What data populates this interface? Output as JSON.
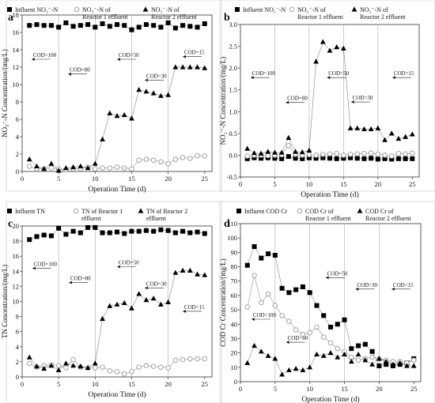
{
  "chart_data": [
    {
      "id": "a",
      "panel_label": "a",
      "type": "line",
      "xlabel": "Operation Time (d)",
      "ylabel": "NO₃⁻-N Concentration/(mg/L)",
      "xlim": [
        0,
        26
      ],
      "ylim": [
        0,
        18
      ],
      "xticks": [
        0,
        5,
        10,
        15,
        20,
        25
      ],
      "yticks": [
        0,
        2,
        4,
        6,
        8,
        10,
        12,
        14,
        16,
        18
      ],
      "phase_lines": [
        5,
        10,
        15,
        20
      ],
      "legend": [
        {
          "marker": "square",
          "lines": [
            "Influent NO₃⁻-N"
          ]
        },
        {
          "marker": "circle",
          "lines": [
            "NO₃⁻-N of",
            "Reactor 1 effluent"
          ]
        },
        {
          "marker": "triangle",
          "lines": [
            "NO₃⁻-N of",
            "Reactor 2 effluent"
          ]
        }
      ],
      "annotations": [
        {
          "text": "COD=100",
          "x": 1.5,
          "y": 13.0
        },
        {
          "text": "COD=80",
          "x": 6.5,
          "y": 11.3
        },
        {
          "text": "COD=50",
          "x": 13.2,
          "y": 13.0
        },
        {
          "text": "COD=30",
          "x": 17.0,
          "y": 10.6
        },
        {
          "text": "COD=15",
          "x": 22.2,
          "y": 13.3
        }
      ],
      "series": [
        {
          "marker": "square",
          "color": "#000000",
          "x": [
            1,
            2,
            3,
            4,
            5,
            6,
            7,
            8,
            9,
            10,
            11,
            12,
            13,
            14,
            15,
            16,
            17,
            18,
            19,
            20,
            21,
            22,
            23,
            24,
            25
          ],
          "y": [
            16.8,
            16.9,
            16.8,
            16.8,
            16.6,
            17.1,
            16.7,
            16.8,
            16.9,
            16.6,
            17.0,
            16.7,
            16.9,
            16.8,
            16.3,
            16.6,
            16.9,
            16.8,
            16.6,
            17.1,
            16.5,
            16.8,
            16.7,
            16.6,
            17.0
          ]
        },
        {
          "marker": "circle",
          "color": "#999999",
          "x": [
            1,
            2,
            3,
            4,
            5,
            6,
            7,
            8,
            9,
            10,
            11,
            12,
            13,
            14,
            15,
            16,
            17,
            18,
            19,
            20,
            21,
            22,
            23,
            24,
            25
          ],
          "y": [
            0.6,
            0.3,
            0.3,
            0.4,
            0.3,
            0.2,
            0.3,
            0.3,
            0.5,
            0.3,
            0.4,
            0.4,
            0.5,
            0.4,
            0.3,
            1.3,
            1.4,
            1.3,
            1.1,
            0.9,
            1.4,
            1.6,
            1.5,
            1.8,
            1.8
          ]
        },
        {
          "marker": "triangle",
          "color": "#000000",
          "x": [
            1,
            2,
            3,
            4,
            5,
            6,
            7,
            8,
            9,
            10,
            11,
            12,
            13,
            14,
            15,
            16,
            17,
            18,
            19,
            20,
            21,
            22,
            23,
            24,
            25
          ],
          "y": [
            1.4,
            0.6,
            0.3,
            0.9,
            0.1,
            0.4,
            0.5,
            0.6,
            0.4,
            0.9,
            3.7,
            6.7,
            6.4,
            6.5,
            6.1,
            9.4,
            9.2,
            9.0,
            8.7,
            8.8,
            12.0,
            12.0,
            12.0,
            12.0,
            11.9
          ]
        }
      ]
    },
    {
      "id": "b",
      "panel_label": "b",
      "type": "line",
      "xlabel": "Operation Time (d)",
      "ylabel": "NO₂⁻-N Concentration/(mg/L)",
      "xlim": [
        0,
        26
      ],
      "ylim": [
        -0.5,
        3.0
      ],
      "xticks": [
        0,
        5,
        10,
        15,
        20,
        25
      ],
      "yticks": [
        -0.5,
        0.0,
        0.5,
        1.0,
        1.5,
        2.0,
        2.5,
        3.0
      ],
      "ytick_labels": [
        "-0.5",
        "0.0",
        "0.5",
        "1.0",
        "1.5",
        "2.0",
        "2.5",
        "3.0"
      ],
      "phase_lines": [
        5,
        10,
        15,
        20
      ],
      "legend": [
        {
          "marker": "square",
          "lines": [
            "Influent NO₂⁻-N"
          ]
        },
        {
          "marker": "circle",
          "lines": [
            "NO₂⁻-N of",
            "Reactor 1 effluent"
          ]
        },
        {
          "marker": "triangle",
          "lines": [
            "NO₂⁻-N of",
            "Reactor 2 effluent"
          ]
        }
      ],
      "annotations": [
        {
          "text": "COD=100",
          "x": 1.7,
          "y": 1.8
        },
        {
          "text": "COD=80",
          "x": 6.8,
          "y": 1.23
        },
        {
          "text": "COD=50",
          "x": 12.8,
          "y": 1.8
        },
        {
          "text": "COD=30",
          "x": 16.3,
          "y": 1.24
        },
        {
          "text": "COD=15",
          "x": 22.3,
          "y": 1.8
        }
      ],
      "series": [
        {
          "marker": "square",
          "color": "#000000",
          "x": [
            1,
            2,
            3,
            4,
            5,
            6,
            7,
            8,
            9,
            10,
            11,
            12,
            13,
            14,
            15,
            16,
            17,
            18,
            19,
            20,
            21,
            22,
            23,
            24,
            25
          ],
          "y": [
            -0.08,
            -0.06,
            -0.07,
            -0.06,
            -0.07,
            -0.08,
            -0.03,
            -0.07,
            -0.08,
            -0.06,
            -0.07,
            -0.06,
            -0.07,
            -0.08,
            -0.07,
            -0.06,
            -0.07,
            -0.08,
            -0.07,
            -0.09,
            -0.08,
            -0.09,
            -0.08,
            -0.08,
            -0.08
          ]
        },
        {
          "marker": "circle",
          "color": "#999999",
          "x": [
            1,
            2,
            3,
            4,
            5,
            6,
            7,
            8,
            9,
            10,
            11,
            12,
            13,
            14,
            15,
            16,
            17,
            18,
            19,
            20,
            21,
            22,
            23,
            24,
            25
          ],
          "y": [
            -0.02,
            0.0,
            0.0,
            -0.01,
            0.0,
            0.01,
            0.22,
            0.02,
            0.0,
            0.01,
            0.0,
            0.02,
            0.03,
            0.04,
            0.0,
            0.02,
            0.03,
            0.04,
            0.05,
            0.02,
            0.0,
            -0.02,
            0.04,
            0.03,
            0.05
          ]
        },
        {
          "marker": "triangle",
          "color": "#000000",
          "x": [
            1,
            2,
            3,
            4,
            5,
            6,
            7,
            8,
            9,
            10,
            11,
            12,
            13,
            14,
            15,
            16,
            17,
            18,
            19,
            20,
            21,
            22,
            23,
            24,
            25
          ],
          "y": [
            0.15,
            0.05,
            0.04,
            0.08,
            0.06,
            0.06,
            0.4,
            0.08,
            0.07,
            0.11,
            2.15,
            2.6,
            2.4,
            2.48,
            2.45,
            0.62,
            0.62,
            0.6,
            0.6,
            0.62,
            0.35,
            0.5,
            0.38,
            0.42,
            0.48
          ]
        }
      ]
    },
    {
      "id": "c",
      "panel_label": "c",
      "type": "line",
      "xlabel": "Operation Time (d)",
      "ylabel": "TN Concentration/(mg/L)",
      "xlim": [
        0,
        26
      ],
      "ylim": [
        0,
        20
      ],
      "xticks": [
        0,
        5,
        10,
        15,
        20,
        25
      ],
      "yticks": [
        0,
        2,
        4,
        6,
        8,
        10,
        12,
        14,
        16,
        18,
        20
      ],
      "phase_lines": [
        5,
        10,
        15,
        20
      ],
      "legend": [
        {
          "marker": "square",
          "lines": [
            "Influent TN"
          ]
        },
        {
          "marker": "circle",
          "lines": [
            "TN of Reactor 1",
            "effluent"
          ]
        },
        {
          "marker": "triangle",
          "lines": [
            "TN of Reactor 2",
            "effluent"
          ]
        }
      ],
      "annotations": [
        {
          "text": "COD=100",
          "x": 1.6,
          "y": 14.5
        },
        {
          "text": "COD=80",
          "x": 6.6,
          "y": 12.6
        },
        {
          "text": "COD=50",
          "x": 13.2,
          "y": 14.7
        },
        {
          "text": "COD=30",
          "x": 17.0,
          "y": 11.9
        },
        {
          "text": "COD=15",
          "x": 22.2,
          "y": 8.8
        }
      ],
      "series": [
        {
          "marker": "square",
          "color": "#000000",
          "x": [
            1,
            2,
            3,
            4,
            5,
            6,
            7,
            8,
            9,
            10,
            11,
            12,
            13,
            14,
            15,
            16,
            17,
            18,
            19,
            20,
            21,
            22,
            23,
            24,
            25
          ],
          "y": [
            18.2,
            18.6,
            18.8,
            18.7,
            19.7,
            18.9,
            19.3,
            19.1,
            19.8,
            19.8,
            19.1,
            19.1,
            19.2,
            19.0,
            19.3,
            19.3,
            19.4,
            19.3,
            19.5,
            19.4,
            19.1,
            19.3,
            19.1,
            19.2,
            19.0
          ]
        },
        {
          "marker": "circle",
          "color": "#999999",
          "x": [
            1,
            2,
            3,
            4,
            5,
            6,
            7,
            8,
            9,
            10,
            11,
            12,
            13,
            14,
            15,
            16,
            17,
            18,
            19,
            20,
            21,
            22,
            23,
            24,
            25
          ],
          "y": [
            1.8,
            1.3,
            1.5,
            1.6,
            1.5,
            1.2,
            2.3,
            1.3,
            1.2,
            1.2,
            1.3,
            0.8,
            0.7,
            0.4,
            0.7,
            1.3,
            1.5,
            1.4,
            1.3,
            1.2,
            2.2,
            2.3,
            2.4,
            2.4,
            2.4
          ]
        },
        {
          "marker": "triangle",
          "color": "#000000",
          "x": [
            1,
            2,
            3,
            4,
            5,
            6,
            7,
            8,
            9,
            10,
            11,
            12,
            13,
            14,
            15,
            16,
            17,
            18,
            19,
            20,
            21,
            22,
            23,
            24,
            25
          ],
          "y": [
            2.6,
            1.4,
            1.1,
            1.5,
            0.9,
            1.8,
            1.5,
            1.4,
            1.2,
            1.8,
            7.7,
            9.4,
            9.6,
            9.8,
            9.1,
            11.0,
            10.2,
            10.4,
            9.6,
            9.9,
            13.8,
            14.1,
            14.1,
            13.6,
            13.5
          ]
        }
      ]
    },
    {
      "id": "d",
      "panel_label": "d",
      "type": "line",
      "xlabel": "Operation Time (d)",
      "ylabel": "COD Cr Concentration/(mg/L)",
      "xlim": [
        0,
        26
      ],
      "ylim": [
        0,
        110
      ],
      "xticks": [
        0,
        5,
        10,
        15,
        20,
        25
      ],
      "yticks": [
        0,
        10,
        20,
        30,
        40,
        50,
        60,
        70,
        80,
        90,
        100,
        110
      ],
      "phase_lines": [
        5,
        10,
        15,
        20
      ],
      "legend": [
        {
          "marker": "square",
          "lines": [
            "Influent COD Cr"
          ]
        },
        {
          "marker": "circle",
          "lines": [
            "COD Cr of",
            "Reactor 1 effluent"
          ]
        },
        {
          "marker": "triangle",
          "lines": [
            "COD Cr of",
            "Reactor 2 effluent"
          ]
        }
      ],
      "annotations": [
        {
          "text": "COD=100",
          "x": 1.8,
          "y": 44
        },
        {
          "text": "COD=80",
          "x": 6.8,
          "y": 28
        },
        {
          "text": "COD=50",
          "x": 12.5,
          "y": 73
        },
        {
          "text": "COD=30",
          "x": 16.8,
          "y": 65
        },
        {
          "text": "COD=15",
          "x": 22.0,
          "y": 65
        }
      ],
      "series": [
        {
          "marker": "square",
          "color": "#000000",
          "x": [
            1,
            2,
            3,
            4,
            5,
            6,
            7,
            8,
            9,
            10,
            11,
            12,
            13,
            14,
            15,
            16,
            17,
            18,
            19,
            20,
            21,
            22,
            23,
            24,
            25
          ],
          "y": [
            81,
            94,
            86,
            89,
            88,
            65,
            62,
            64,
            66,
            62,
            53,
            46,
            38,
            40,
            43,
            23,
            25,
            26,
            21,
            11,
            12,
            11,
            12,
            13,
            16
          ]
        },
        {
          "marker": "circle",
          "color": "#999999",
          "x": [
            1,
            2,
            3,
            4,
            5,
            6,
            7,
            8,
            9,
            10,
            11,
            12,
            13,
            14,
            15,
            16,
            17,
            18,
            19,
            20,
            21,
            22,
            23,
            24,
            25
          ],
          "y": [
            52,
            74,
            55,
            61,
            53,
            46,
            42,
            36,
            33,
            34,
            38,
            31,
            27,
            23,
            21,
            17,
            15,
            16,
            17,
            16,
            15,
            14,
            14,
            13,
            15
          ]
        },
        {
          "marker": "triangle",
          "color": "#000000",
          "x": [
            1,
            2,
            3,
            4,
            5,
            6,
            7,
            8,
            9,
            10,
            11,
            12,
            13,
            14,
            15,
            16,
            17,
            18,
            19,
            20,
            21,
            22,
            23,
            24,
            25
          ],
          "y": [
            13,
            25,
            21,
            18,
            16,
            5,
            8,
            9,
            8,
            10,
            19,
            18,
            20,
            17,
            19,
            14,
            19,
            15,
            12,
            16,
            14,
            12,
            13,
            11,
            11
          ]
        }
      ]
    }
  ]
}
